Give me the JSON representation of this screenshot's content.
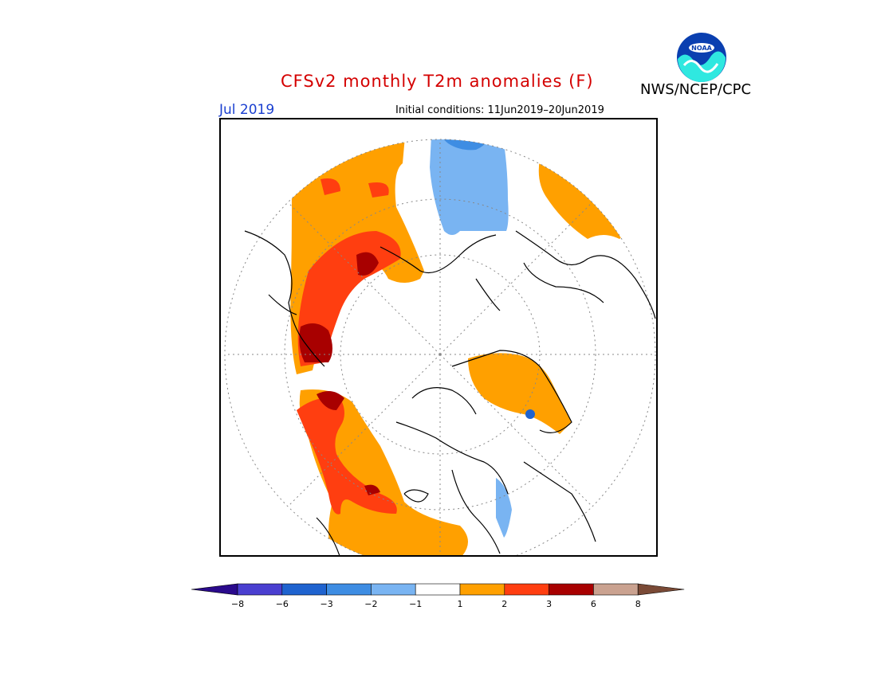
{
  "title": "CFSv2 monthly T2m anomalies (F)",
  "agency": "NWS/NCEP/CPC",
  "logo_text": "NOAA",
  "valid_month": "Jul 2019",
  "initial_conditions": "Initial conditions: 11Jun2019–20Jun2019",
  "colors": {
    "title": "#d40000",
    "month": "#1a3fd0"
  },
  "colorbar": {
    "bins": [
      {
        "color": "#2a0a8c"
      },
      {
        "color": "#4a3fd0"
      },
      {
        "color": "#1f63cf"
      },
      {
        "color": "#3e8de3"
      },
      {
        "color": "#79b4f2"
      },
      {
        "color": "#ffffff"
      },
      {
        "color": "#ffa000"
      },
      {
        "color": "#ff3e10"
      },
      {
        "color": "#a80000"
      },
      {
        "color": "#caa290"
      },
      {
        "color": "#7a4a36"
      }
    ],
    "tick_labels": [
      "−8",
      "−6",
      "−3",
      "−2",
      "−1",
      "1",
      "2",
      "3",
      "6",
      "8"
    ]
  }
}
